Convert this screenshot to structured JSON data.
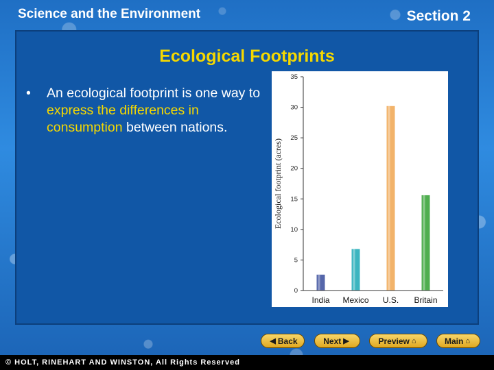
{
  "header": {
    "course_title": "Science and the Environment",
    "section": "Section 2"
  },
  "slide": {
    "title": "Ecological Footprints",
    "bullet_marker": "•",
    "bullet_before": "An ecological footprint is one way to ",
    "bullet_highlight": "express the differences in consumption",
    "bullet_after": " between nations."
  },
  "colors": {
    "title_yellow": "#f5d800",
    "panel_blue": "#1157a6"
  },
  "chart_data": {
    "type": "bar",
    "categories": [
      "India",
      "Mexico",
      "U.S.",
      "Britain"
    ],
    "values": [
      2.6,
      6.8,
      30.2,
      15.6
    ],
    "bar_colors": [
      "#5566aa",
      "#3bb5c0",
      "#f2b36a",
      "#4fae4f"
    ],
    "title": "",
    "xlabel": "",
    "ylabel": "Ecological footprint (acres)",
    "ylim": [
      0,
      35
    ],
    "yticks": [
      0,
      5,
      10,
      15,
      20,
      25,
      30,
      35
    ],
    "grid": false
  },
  "nav": {
    "back": "Back",
    "next": "Next",
    "preview": "Preview",
    "main": "Main",
    "back_icon": "chevron-left-icon",
    "next_icon": "chevron-right-icon",
    "home_icon": "home-icon"
  },
  "footer": {
    "copyright": "© HOLT, RINEHART AND WINSTON, All Rights Reserved"
  }
}
